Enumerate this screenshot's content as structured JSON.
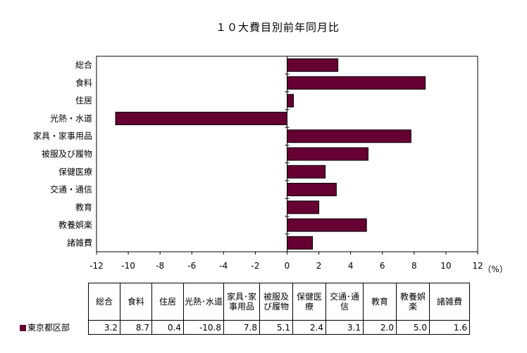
{
  "chart_data": {
    "type": "bar",
    "orientation": "horizontal",
    "title": "１０大費目別前年同月比",
    "unit_label": "（%）",
    "categories": [
      "総合",
      "食料",
      "住居",
      "光熱・水道",
      "家具・家事用品",
      "被服及び履物",
      "保健医療",
      "交通・通信",
      "教育",
      "教養娯楽",
      "諸雑費"
    ],
    "series": [
      {
        "name": "東京都区部",
        "values": [
          3.2,
          8.7,
          0.4,
          -10.8,
          7.8,
          5.1,
          2.4,
          3.1,
          2.0,
          5.0,
          1.6
        ],
        "color": "#660033"
      }
    ],
    "xlim": [
      -12,
      12
    ],
    "xticks": [
      -12,
      -10,
      -8,
      -6,
      -4,
      -2,
      0,
      2,
      4,
      6,
      8,
      10,
      12
    ],
    "grid": false,
    "legend": "table-below",
    "table": {
      "headers": [
        "総合",
        "食料",
        "住居",
        "光熱･水道",
        "家具･家事用品",
        "被服及び履物",
        "保健医療",
        "交通･通信",
        "教育",
        "教養娯楽",
        "諸雑費"
      ],
      "row_label": "東京都区部",
      "values": [
        "3.2",
        "8.7",
        "0.4",
        "-10.8",
        "7.8",
        "5.1",
        "2.4",
        "3.1",
        "2.0",
        "5.0",
        "1.6"
      ]
    }
  }
}
